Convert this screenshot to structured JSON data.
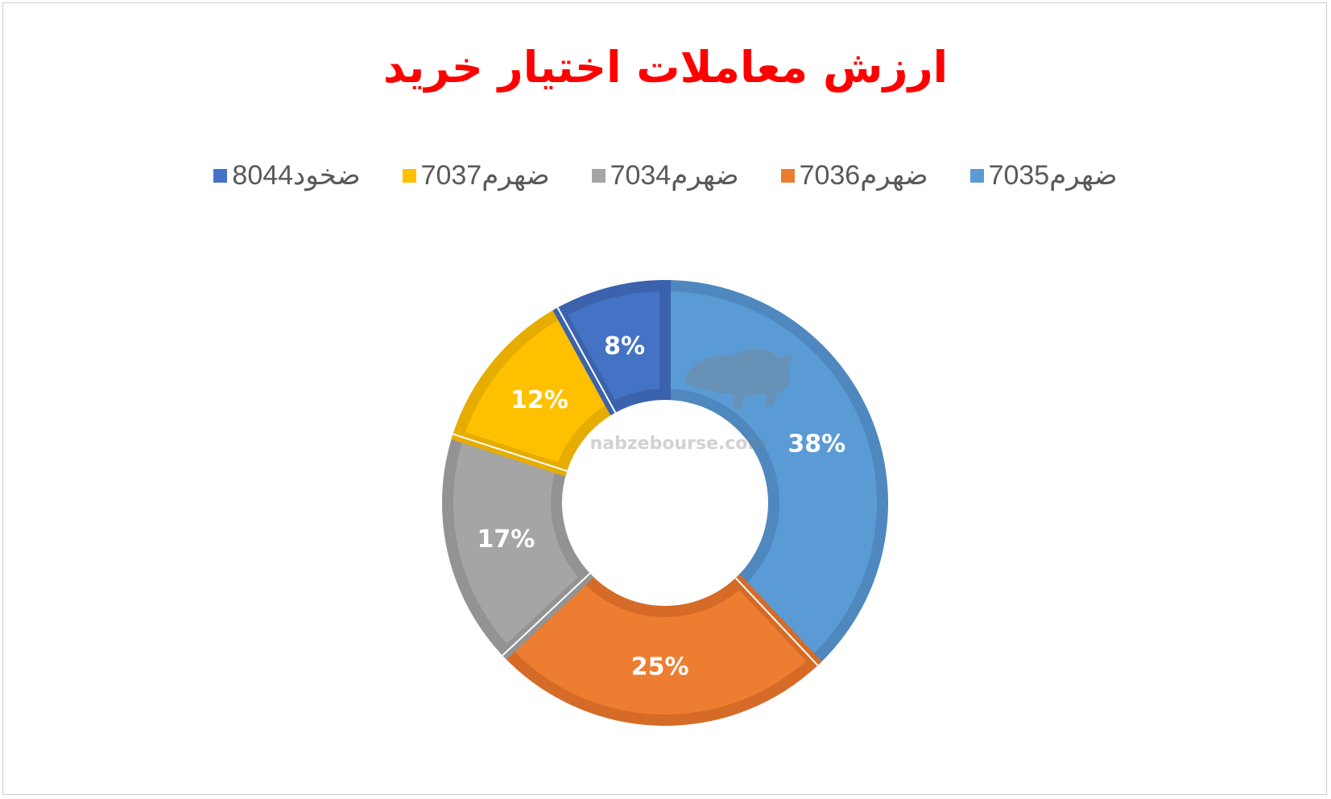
{
  "chart_data": {
    "type": "pie",
    "title": "ارزش معاملات اختیار خرید",
    "title_color": "#ff0000",
    "donut": true,
    "legend_position": "top",
    "categories": [
      "ضهرم7035",
      "ضهرم7036",
      "ضهرم7034",
      "ضهرم7037",
      "ضخود8044"
    ],
    "values": [
      38,
      25,
      17,
      12,
      8
    ],
    "labels": [
      "38%",
      "25%",
      "17%",
      "12%",
      "8%"
    ],
    "unit": "%",
    "colors": [
      "#5b9bd5",
      "#ed7d31",
      "#a5a5a5",
      "#ffc000",
      "#4472c4"
    ],
    "edge_colors": [
      "#4e88bf",
      "#d66b27",
      "#939393",
      "#e6ad00",
      "#3b63ad"
    ]
  },
  "watermark": {
    "text": "nabzebourse.com",
    "logo_icon": "bull-icon"
  }
}
